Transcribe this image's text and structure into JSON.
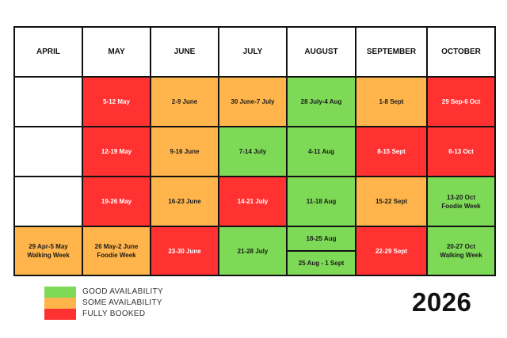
{
  "months": [
    "APRIL",
    "MAY",
    "JUNE",
    "JULY",
    "AUGUST",
    "SEPTEMBER",
    "OCTOBER"
  ],
  "rows": [
    [
      {
        "status": "blank"
      },
      {
        "label": "5-12 May",
        "status": "full"
      },
      {
        "label": "2-9 June",
        "status": "some"
      },
      {
        "label": "30 June-7 July",
        "status": "some"
      },
      {
        "label": "28 July-4 Aug",
        "status": "good"
      },
      {
        "label": "1-8 Sept",
        "status": "some"
      },
      {
        "label": "29 Sep-6 Oct",
        "status": "full"
      }
    ],
    [
      {
        "status": "blank"
      },
      {
        "label": "12-19 May",
        "status": "full"
      },
      {
        "label": "9-16 June",
        "status": "some"
      },
      {
        "label": "7-14 July",
        "status": "good"
      },
      {
        "label": "4-11 Aug",
        "status": "good"
      },
      {
        "label": "8-15 Sept",
        "status": "full"
      },
      {
        "label": "6-13 Oct",
        "status": "full"
      }
    ],
    [
      {
        "status": "blank"
      },
      {
        "label": "19-26 May",
        "status": "full"
      },
      {
        "label": "16-23 June",
        "status": "some"
      },
      {
        "label": "14-21 July",
        "status": "full"
      },
      {
        "label": "11-18 Aug",
        "status": "good"
      },
      {
        "label": "15-22 Sept",
        "status": "some"
      },
      {
        "label": "13-20 Oct",
        "sublabel": "Foodie Week",
        "status": "good"
      }
    ],
    [
      {
        "label": "29 Apr-5 May",
        "sublabel": "Walking Week",
        "status": "some"
      },
      {
        "label": "26 May-2 June",
        "sublabel": "Foodie Week",
        "status": "some"
      },
      {
        "label": "23-30 June",
        "status": "full"
      },
      {
        "label": "21-28 July",
        "status": "good"
      },
      {
        "split": [
          {
            "label": "18-25 Aug",
            "status": "good"
          },
          {
            "label": "25 Aug - 1 Sept",
            "status": "good"
          }
        ]
      },
      {
        "label": "22-29 Sept",
        "status": "full"
      },
      {
        "label": "20-27 Oct",
        "sublabel": "Walking Week",
        "status": "good"
      }
    ]
  ],
  "legend": [
    {
      "label": "GOOD AVAILABILITY",
      "color": "#7ed957",
      "status": "good"
    },
    {
      "label": "SOME AVAILABILITY",
      "color": "#ffb54c",
      "status": "some"
    },
    {
      "label": "FULLY BOOKED",
      "color": "#ff3131",
      "status": "full"
    }
  ],
  "year": "2026"
}
